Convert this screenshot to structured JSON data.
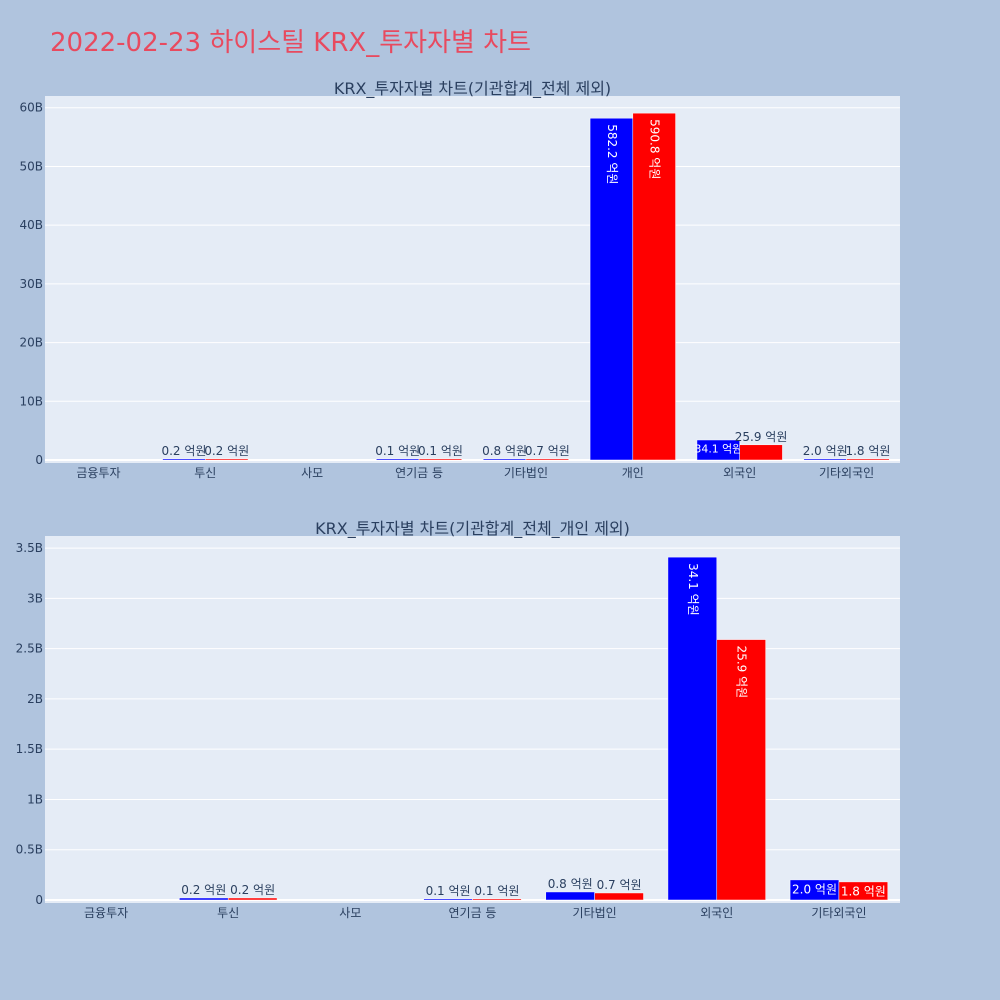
{
  "page_title": "2022-02-23 하이스틸 KRX_투자자별 차트",
  "colors": {
    "page_bg": "#b0c4de",
    "plot_bg": "#e5ecf6",
    "title": "#e84a5f",
    "series_a": "#0000ff",
    "series_b": "#ff0000"
  },
  "chart_data": [
    {
      "type": "bar",
      "title": "KRX_투자자별 차트(기관합계_전체 제외)",
      "categories": [
        "금융투자",
        "투신",
        "사모",
        "연기금 등",
        "기타법인",
        "개인",
        "외국인",
        "기타외국인"
      ],
      "yticks": [
        "0",
        "10B",
        "20B",
        "30B",
        "40B",
        "50B",
        "60B"
      ],
      "ylim": [
        0,
        62000000000
      ],
      "series": [
        {
          "color": "#0000ff",
          "values": [
            0,
            20000000,
            0,
            10000000,
            80000000,
            58220000000,
            3410000000,
            200000000
          ],
          "labels": [
            "",
            "0.2 억원",
            "",
            "0.1 억원",
            "0.8 억원",
            "582.2 억원",
            "34.1 억원",
            "2.0 억원"
          ]
        },
        {
          "color": "#ff0000",
          "values": [
            0,
            20000000,
            0,
            10000000,
            70000000,
            59080000000,
            2590000000,
            180000000
          ],
          "labels": [
            "",
            "0.2 억원",
            "",
            "0.1 억원",
            "0.7 억원",
            "590.8 억원",
            "25.9 억원",
            "1.8 억원"
          ]
        }
      ]
    },
    {
      "type": "bar",
      "title": "KRX_투자자별 차트(기관합계_전체_개인 제외)",
      "categories": [
        "금융투자",
        "투신",
        "사모",
        "연기금 등",
        "기타법인",
        "외국인",
        "기타외국인"
      ],
      "yticks": [
        "0",
        "0.5B",
        "1B",
        "1.5B",
        "2B",
        "2.5B",
        "3B",
        "3.5B"
      ],
      "ylim": [
        0,
        3620000000
      ],
      "series": [
        {
          "color": "#0000ff",
          "values": [
            0,
            20000000,
            0,
            10000000,
            80000000,
            3410000000,
            200000000
          ],
          "labels": [
            "",
            "0.2 억원",
            "",
            "0.1 억원",
            "0.8 억원",
            "34.1 억원",
            "2.0 억원"
          ]
        },
        {
          "color": "#ff0000",
          "values": [
            0,
            20000000,
            0,
            10000000,
            70000000,
            2590000000,
            180000000
          ],
          "labels": [
            "",
            "0.2 억원",
            "",
            "0.1 억원",
            "0.7 억원",
            "25.9 억원",
            "1.8 억원"
          ]
        }
      ]
    }
  ]
}
